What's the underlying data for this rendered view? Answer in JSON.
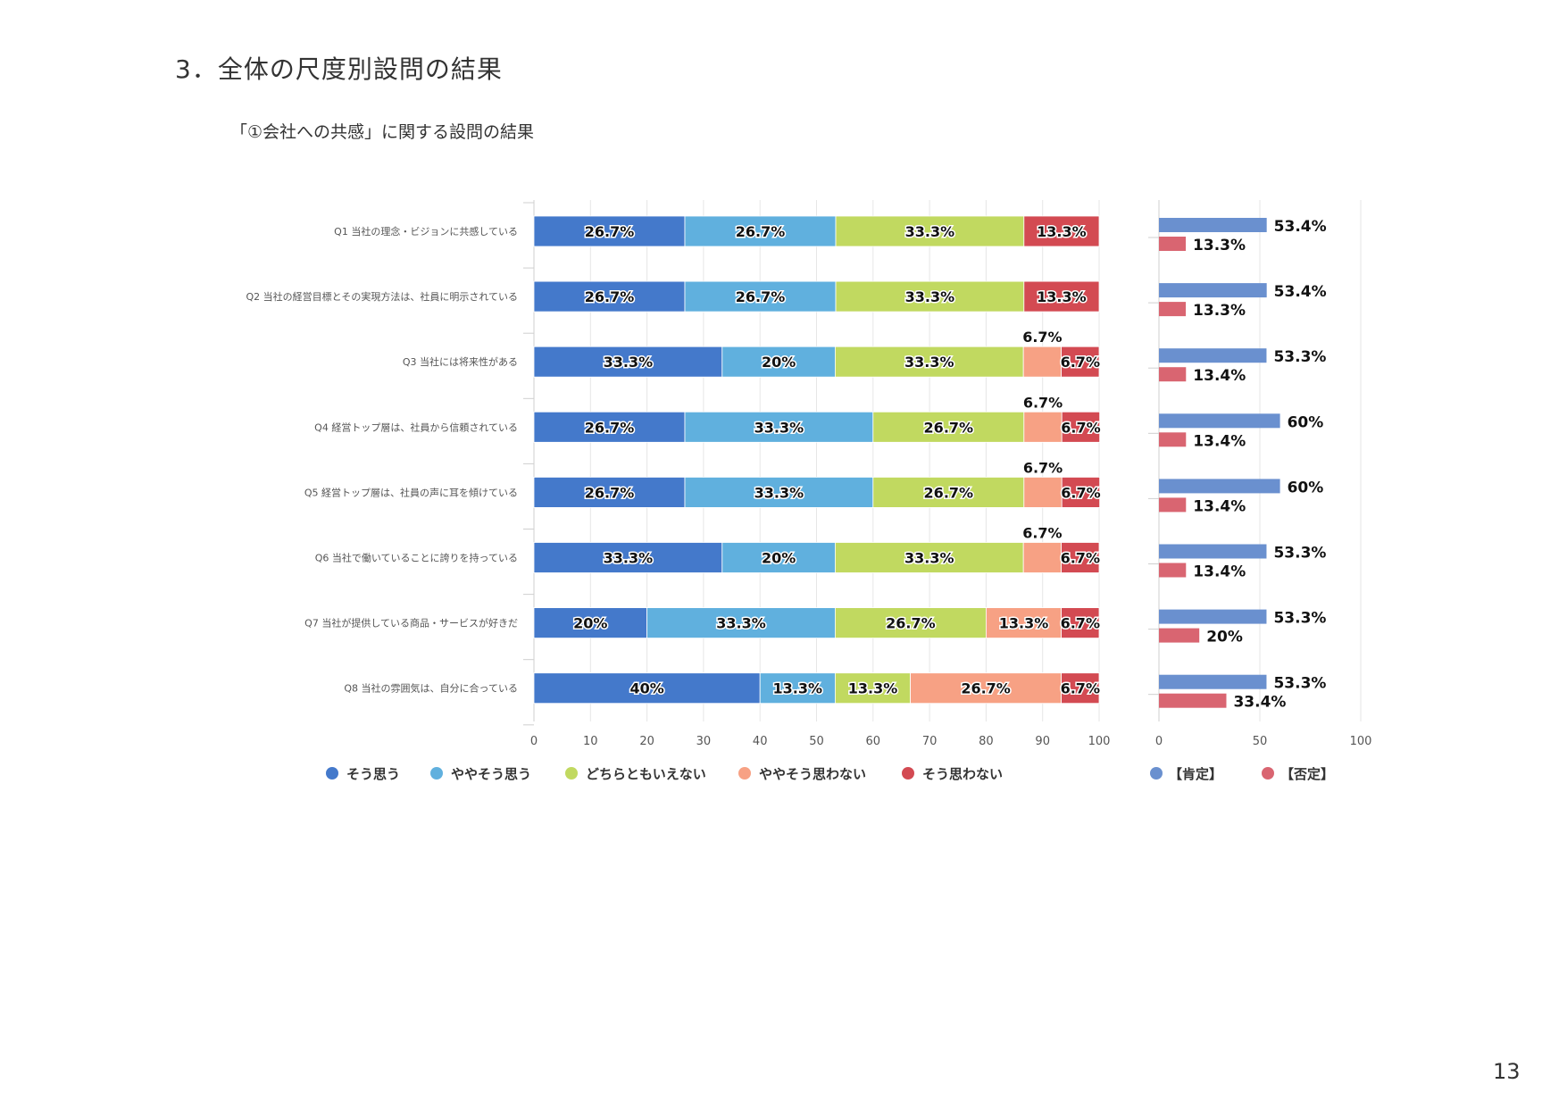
{
  "page": {
    "title": "3．全体の尺度別設問の結果",
    "subtitle": "「①会社への共感」に関する設問の結果",
    "page_number": "13"
  },
  "chart_data": [
    {
      "type": "bar",
      "orientation": "horizontal",
      "stacked": true,
      "categories": [
        "Q1 当社の理念・ビジョンに共感している",
        "Q2 当社の経営目標とその実現方法は、社員に明示されている",
        "Q3 当社には将来性がある",
        "Q4 経営トップ層は、社員から信頼されている",
        "Q5 経営トップ層は、社員の声に耳を傾けている",
        "Q6 当社で働いていることに誇りを持っている",
        "Q7 当社が提供している商品・サービスが好きだ",
        "Q8 当社の雰囲気は、自分に合っている"
      ],
      "series": [
        {
          "name": "そう思う",
          "color": "#4479cb",
          "values": [
            26.7,
            26.7,
            33.3,
            26.7,
            26.7,
            33.3,
            20,
            40
          ],
          "labels": [
            "26.7%",
            "26.7%",
            "33.3%",
            "26.7%",
            "26.7%",
            "33.3%",
            "20%",
            "40%"
          ]
        },
        {
          "name": "ややそう思う",
          "color": "#60b0de",
          "values": [
            26.7,
            26.7,
            20,
            33.3,
            33.3,
            20,
            33.3,
            13.3
          ],
          "labels": [
            "26.7%",
            "26.7%",
            "20%",
            "33.3%",
            "33.3%",
            "20%",
            "33.3%",
            "13.3%"
          ]
        },
        {
          "name": "どちらともいえない",
          "color": "#c1d960",
          "values": [
            33.3,
            33.3,
            33.3,
            26.7,
            26.7,
            33.3,
            26.7,
            13.3
          ],
          "labels": [
            "33.3%",
            "33.3%",
            "33.3%",
            "26.7%",
            "26.7%",
            "33.3%",
            "26.7%",
            "13.3%"
          ]
        },
        {
          "name": "ややそう思わない",
          "color": "#f7a184",
          "values": [
            0,
            0,
            6.7,
            6.7,
            6.7,
            6.7,
            13.3,
            26.7
          ],
          "labels": [
            "",
            "",
            "6.7%",
            "6.7%",
            "6.7%",
            "6.7%",
            "13.3%",
            "26.7%"
          ]
        },
        {
          "name": "そう思わない",
          "color": "#d34a52",
          "values": [
            13.3,
            13.3,
            6.7,
            6.7,
            6.7,
            6.7,
            6.7,
            6.7
          ],
          "labels": [
            "13.3%",
            "13.3%",
            "6.7%",
            "6.7%",
            "6.7%",
            "6.7%",
            "6.7%",
            "6.7%"
          ]
        }
      ],
      "xlim": [
        0,
        100
      ],
      "xticks": [
        "0",
        "10",
        "20",
        "30",
        "40",
        "50",
        "60",
        "70",
        "80",
        "90",
        "100"
      ],
      "grid": true,
      "legend_position": "bottom"
    },
    {
      "type": "bar",
      "orientation": "horizontal",
      "stacked": false,
      "series": [
        {
          "name": "【肯定】",
          "color": "#6a90cf",
          "values": [
            53.4,
            53.4,
            53.3,
            60,
            60,
            53.3,
            53.3,
            53.3
          ],
          "labels": [
            "53.4%",
            "53.4%",
            "53.3%",
            "60%",
            "60%",
            "53.3%",
            "53.3%",
            "53.3%"
          ]
        },
        {
          "name": "【否定】",
          "color": "#d96571",
          "values": [
            13.3,
            13.3,
            13.4,
            13.4,
            13.4,
            13.4,
            20,
            33.4
          ],
          "labels": [
            "13.3%",
            "13.3%",
            "13.4%",
            "13.4%",
            "13.4%",
            "13.4%",
            "20%",
            "33.4%"
          ]
        }
      ],
      "xlim": [
        0,
        100
      ],
      "xticks": [
        "0",
        "50",
        "100"
      ],
      "grid": true,
      "legend_position": "bottom"
    }
  ],
  "colors": {
    "grid": "#e6e6e6",
    "axis": "#cfcfcf",
    "tick_text": "#555555",
    "category_text": "#555555"
  }
}
